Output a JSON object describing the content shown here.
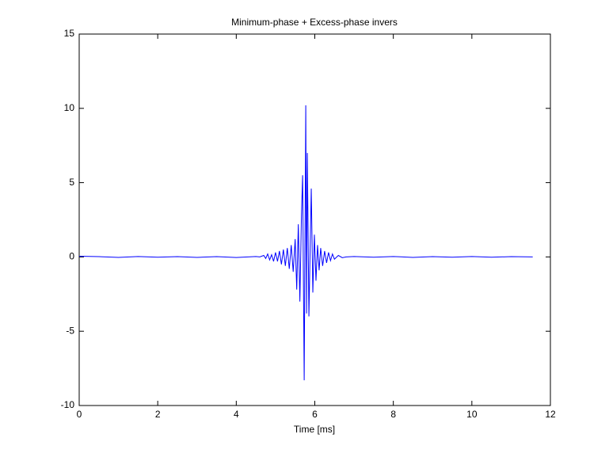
{
  "chart_data": {
    "type": "line",
    "title": "Minimum-phase + Excess-phase invers",
    "x_label": "Time [ms]",
    "x": [
      0,
      0.5,
      1,
      1.5,
      2,
      2.5,
      3,
      3.5,
      4,
      4.5,
      4.6,
      4.7,
      4.75,
      4.8,
      4.85,
      4.9,
      4.95,
      5.0,
      5.05,
      5.1,
      5.15,
      5.2,
      5.25,
      5.3,
      5.35,
      5.4,
      5.45,
      5.5,
      5.54,
      5.58,
      5.62,
      5.66,
      5.69,
      5.73,
      5.77,
      5.79,
      5.81,
      5.85,
      5.91,
      5.95,
      5.99,
      6.03,
      6.07,
      6.11,
      6.15,
      6.2,
      6.25,
      6.3,
      6.35,
      6.4,
      6.45,
      6.5,
      6.6,
      6.7,
      6.8,
      7,
      7.5,
      8,
      8.5,
      9,
      9.5,
      10,
      10.5,
      11,
      11.55
    ],
    "values": [
      0.05,
      0.02,
      -0.03,
      0.03,
      -0.02,
      0.02,
      -0.03,
      0.02,
      -0.04,
      0.03,
      0,
      0.1,
      -0.1,
      0.2,
      -0.2,
      0.15,
      -0.3,
      0.3,
      -0.3,
      0.4,
      -0.5,
      0.5,
      -0.6,
      0.6,
      -0.8,
      0.8,
      -1.0,
      1.2,
      -2.2,
      2.2,
      -3.0,
      2.8,
      5.5,
      -8.3,
      10.2,
      -3.8,
      7.0,
      -4.0,
      4.6,
      -2.4,
      1.5,
      -1.6,
      0.8,
      -0.9,
      0.6,
      -0.6,
      0.4,
      -0.4,
      0.3,
      -0.25,
      0.2,
      -0.15,
      0.1,
      -0.05,
      0,
      0.03,
      -0.02,
      0.03,
      -0.03,
      0.02,
      -0.02,
      0.03,
      -0.02,
      0.02,
      0
    ],
    "color": "#0000ff",
    "xlim": [
      0,
      12
    ],
    "xticks": [
      0,
      2,
      4,
      6,
      8,
      10,
      12
    ],
    "ylim": [
      -10,
      15
    ],
    "yticks": [
      -10,
      -5,
      0,
      5,
      10,
      15
    ]
  }
}
